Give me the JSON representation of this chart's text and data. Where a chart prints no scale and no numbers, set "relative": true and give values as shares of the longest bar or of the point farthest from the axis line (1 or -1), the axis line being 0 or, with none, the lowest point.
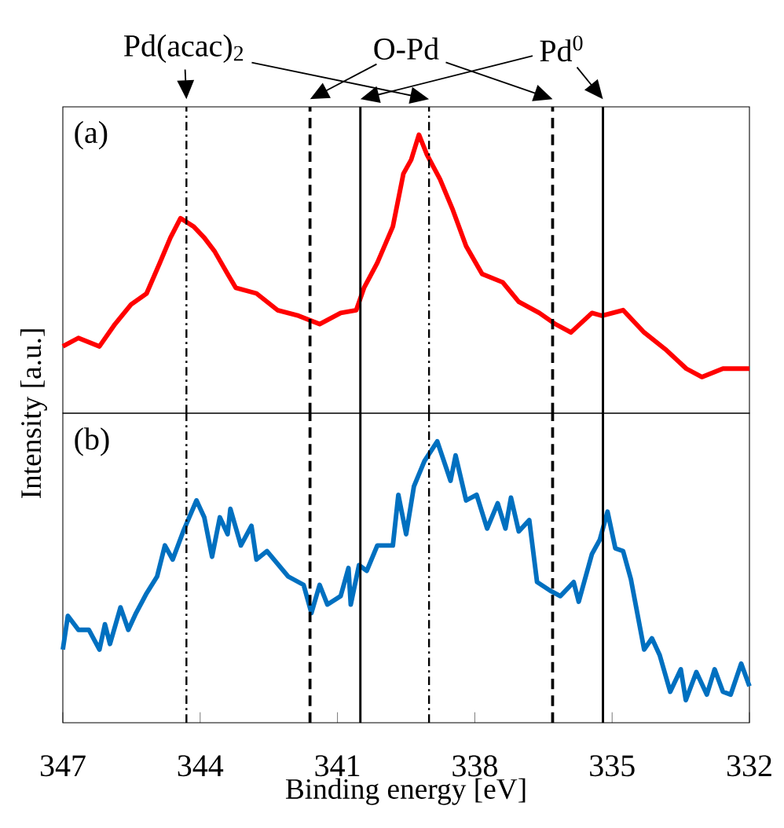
{
  "chart_data": [
    {
      "type": "line",
      "relative": true,
      "color": "#ff0000",
      "xlim": [
        347,
        332
      ],
      "tick_labels": false,
      "ylabel": "Intensity [a.u.]",
      "annotations": [
        "(a)"
      ],
      "x": [
        347.0,
        346.66,
        346.2,
        345.86,
        345.51,
        345.17,
        344.88,
        344.65,
        344.43,
        344.14,
        343.91,
        343.68,
        343.4,
        343.22,
        342.77,
        342.31,
        341.85,
        341.39,
        340.93,
        340.59,
        340.42,
        340.13,
        339.79,
        339.56,
        339.39,
        339.22,
        339.05,
        338.76,
        338.48,
        338.19,
        337.84,
        337.39,
        337.04,
        336.59,
        336.24,
        335.9,
        335.44,
        335.22,
        334.76,
        334.3,
        333.84,
        333.38,
        333.04,
        332.58,
        332.0
      ],
      "values": [
        0.24,
        0.27,
        0.24,
        0.32,
        0.39,
        0.43,
        0.54,
        0.63,
        0.7,
        0.67,
        0.63,
        0.58,
        0.5,
        0.45,
        0.43,
        0.37,
        0.35,
        0.32,
        0.36,
        0.37,
        0.45,
        0.54,
        0.67,
        0.86,
        0.91,
        1.0,
        0.93,
        0.84,
        0.73,
        0.6,
        0.5,
        0.47,
        0.4,
        0.36,
        0.32,
        0.29,
        0.36,
        0.35,
        0.37,
        0.29,
        0.23,
        0.16,
        0.13,
        0.16,
        0.16
      ],
      "ref_lines": [
        {
          "axis": "x",
          "value": 344.3,
          "line_style": "dashdot",
          "label": "Pd(acac)$_{2}$"
        },
        {
          "axis": "x",
          "value": 339.0,
          "line_style": "dashdot"
        },
        {
          "axis": "x",
          "value": 341.6,
          "line_style": "dashed",
          "label": "O-Pd"
        },
        {
          "axis": "x",
          "value": 336.3,
          "line_style": "dashed"
        },
        {
          "axis": "x",
          "value": 340.5,
          "line_style": "solid"
        },
        {
          "axis": "x",
          "value": 335.2,
          "line_style": "solid",
          "label": "Pd$^{0}$"
        }
      ]
    },
    {
      "type": "line",
      "relative": true,
      "color": "#0070c0",
      "xlim": [
        347,
        332
      ],
      "xticks": [
        347,
        344,
        341,
        338,
        335,
        332
      ],
      "tick_labels": "x",
      "xlabel": "Binding energy [eV]",
      "annotations": [
        "(b)"
      ],
      "x": [
        347.0,
        346.89,
        346.66,
        346.43,
        346.2,
        346.08,
        345.97,
        345.74,
        345.57,
        345.4,
        345.17,
        344.94,
        344.77,
        344.6,
        344.37,
        344.08,
        343.91,
        343.74,
        343.57,
        343.4,
        343.34,
        343.11,
        342.88,
        342.77,
        342.54,
        342.08,
        341.74,
        341.57,
        341.39,
        341.22,
        340.93,
        340.76,
        340.71,
        340.53,
        340.36,
        340.13,
        339.79,
        339.67,
        339.5,
        339.33,
        339.1,
        338.82,
        338.53,
        338.42,
        338.19,
        337.96,
        337.73,
        337.5,
        337.33,
        337.21,
        337.04,
        336.81,
        336.64,
        336.36,
        336.13,
        335.84,
        335.73,
        335.44,
        335.27,
        335.1,
        334.93,
        334.76,
        334.59,
        334.3,
        334.13,
        333.96,
        333.73,
        333.5,
        333.39,
        333.16,
        332.93,
        332.76,
        332.58,
        332.41,
        332.18,
        332.0
      ],
      "values": [
        0.26,
        0.38,
        0.33,
        0.33,
        0.26,
        0.35,
        0.28,
        0.41,
        0.33,
        0.39,
        0.46,
        0.52,
        0.63,
        0.58,
        0.68,
        0.79,
        0.73,
        0.59,
        0.73,
        0.67,
        0.76,
        0.63,
        0.7,
        0.58,
        0.61,
        0.52,
        0.49,
        0.39,
        0.49,
        0.42,
        0.45,
        0.55,
        0.42,
        0.56,
        0.54,
        0.63,
        0.63,
        0.81,
        0.67,
        0.84,
        0.93,
        1.0,
        0.86,
        0.95,
        0.79,
        0.81,
        0.69,
        0.78,
        0.69,
        0.8,
        0.68,
        0.72,
        0.5,
        0.47,
        0.45,
        0.5,
        0.43,
        0.6,
        0.65,
        0.75,
        0.62,
        0.61,
        0.51,
        0.26,
        0.3,
        0.24,
        0.11,
        0.19,
        0.08,
        0.18,
        0.1,
        0.19,
        0.11,
        0.1,
        0.21,
        0.13
      ],
      "ref_lines": [
        {
          "axis": "x",
          "value": 344.3,
          "line_style": "dashdot"
        },
        {
          "axis": "x",
          "value": 339.0,
          "line_style": "dashdot"
        },
        {
          "axis": "x",
          "value": 341.6,
          "line_style": "dashed"
        },
        {
          "axis": "x",
          "value": 336.3,
          "line_style": "dashed"
        },
        {
          "axis": "x",
          "value": 340.5,
          "line_style": "solid"
        },
        {
          "axis": "x",
          "value": 335.2,
          "line_style": "solid"
        }
      ]
    }
  ]
}
